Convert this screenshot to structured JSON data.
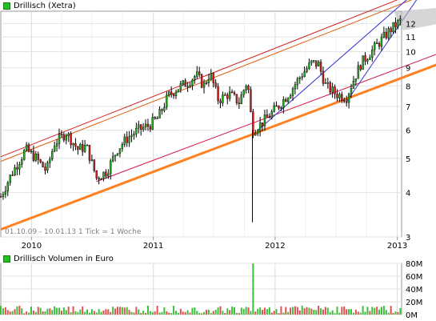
{
  "chart_data": {
    "type": "candlestick",
    "title": "Drillisch (Xetra)",
    "y_scale": "log",
    "ylim": [
      3,
      13
    ],
    "y_ticks": [
      3,
      4,
      5,
      6,
      7,
      8,
      9,
      10,
      11,
      12
    ],
    "x_ticks": [
      "2010",
      "2011",
      "2012",
      "2013"
    ],
    "info": "01.10.09 - 10.01.13   1 Tick = 1 Woche",
    "price_path": [
      [
        "2009-10-01",
        3.9
      ],
      [
        "2009-11-01",
        4.5
      ],
      [
        "2009-12-15",
        5.3
      ],
      [
        "2010-01-15",
        5.0
      ],
      [
        "2010-02-15",
        4.6
      ],
      [
        "2010-03-10",
        5.5
      ],
      [
        "2010-04-15",
        5.9
      ],
      [
        "2010-05-20",
        5.3
      ],
      [
        "2010-06-15",
        5.4
      ],
      [
        "2010-07-15",
        4.4
      ],
      [
        "2010-08-15",
        4.6
      ],
      [
        "2010-09-15",
        5.3
      ],
      [
        "2010-10-15",
        5.7
      ],
      [
        "2010-11-15",
        6.0
      ],
      [
        "2010-12-20",
        6.2
      ],
      [
        "2011-01-15",
        6.5
      ],
      [
        "2011-02-15",
        7.5
      ],
      [
        "2011-03-15",
        7.9
      ],
      [
        "2011-04-15",
        8.2
      ],
      [
        "2011-05-10",
        8.6
      ],
      [
        "2011-06-01",
        8.0
      ],
      [
        "2011-06-20",
        8.7
      ],
      [
        "2011-07-15",
        7.3
      ],
      [
        "2011-08-15",
        7.6
      ],
      [
        "2011-09-15",
        7.2
      ],
      [
        "2011-10-10",
        8.3
      ],
      [
        "2011-10-25",
        6.0
      ],
      [
        "2011-11-15",
        6.2
      ],
      [
        "2011-12-15",
        6.6
      ],
      [
        "2012-01-15",
        7.1
      ],
      [
        "2012-02-15",
        7.7
      ],
      [
        "2012-03-20",
        8.6
      ],
      [
        "2012-04-20",
        9.3
      ],
      [
        "2012-05-10",
        9.2
      ],
      [
        "2012-06-01",
        8.0
      ],
      [
        "2012-07-01",
        7.6
      ],
      [
        "2012-08-01",
        7.4
      ],
      [
        "2012-08-20",
        8.2
      ],
      [
        "2012-09-15",
        9.3
      ],
      [
        "2012-10-15",
        10.0
      ],
      [
        "2012-11-15",
        10.8
      ],
      [
        "2012-12-10",
        11.5
      ],
      [
        "2013-01-10",
        12.2
      ]
    ],
    "spikes": [
      [
        "2011-10-25",
        3.3
      ]
    ],
    "volume": {
      "title": "Drillisch Volumen in Euro",
      "y_ticks": [
        "0M",
        "20M",
        "40M",
        "60M",
        "80M"
      ],
      "ylim": [
        0,
        80
      ],
      "typical_weekly_range": [
        2,
        14
      ],
      "peaks": [
        [
          "2011-10-25",
          80
        ],
        [
          "2010-03-10",
          13
        ],
        [
          "2012-01-20",
          13
        ],
        [
          "2012-06-01",
          12
        ],
        [
          "2011-07-15",
          11
        ],
        [
          "2012-11-15",
          12
        ]
      ]
    },
    "trendlines": [
      {
        "color": "#e06010",
        "from": [
          "2009-10-01",
          4.9
        ],
        "to": [
          "2013-01-10",
          13.6
        ]
      },
      {
        "color": "#d02020",
        "from": [
          "2009-10-01",
          5.05
        ],
        "to": [
          "2013-01-10",
          14.1
        ]
      },
      {
        "color": "#ff8020",
        "from": [
          "2009-10-01",
          3.15
        ],
        "to": [
          "2013-01-10",
          8.4
        ]
      },
      {
        "color": "#d01040",
        "from": [
          "2010-07-15",
          4.3
        ],
        "to": [
          "2013-01-10",
          9.0
        ]
      },
      {
        "color": "#3030d0",
        "from": [
          "2011-11-10",
          6.0
        ],
        "to": [
          "2013-01-10",
          13.5
        ]
      },
      {
        "color": "#3030d0",
        "from": [
          "2012-08-01",
          7.2
        ],
        "to": [
          "2013-01-10",
          12.0
        ]
      }
    ]
  }
}
